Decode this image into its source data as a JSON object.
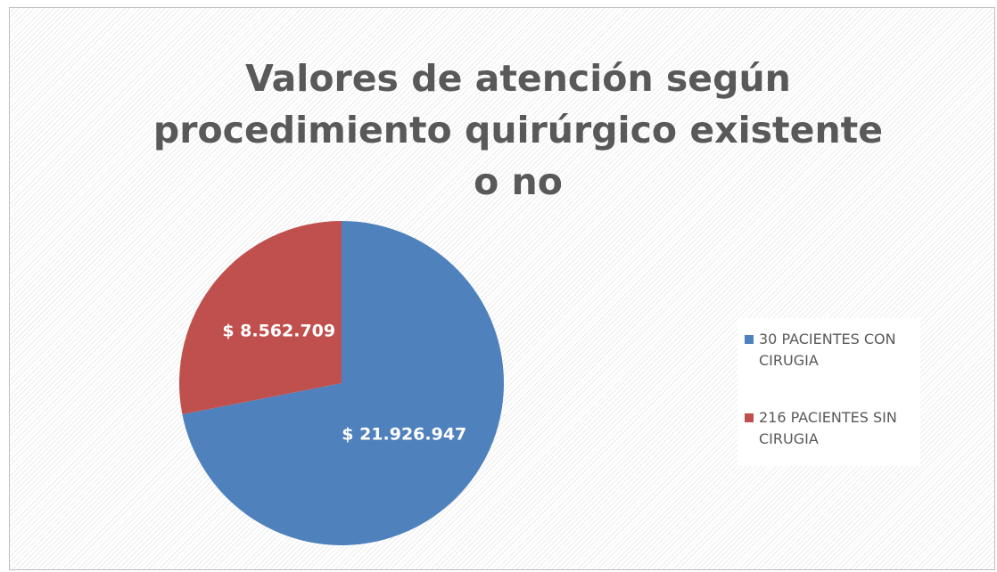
{
  "chart_data": {
    "type": "pie",
    "title": "Valores de atención según procedimiento quirúrgico existente o no",
    "series": [
      {
        "name": "30 PACIENTES CON CIRUGIA",
        "color": "#4f81bd"
      },
      {
        "name": "216 PACIENTES SIN CIRUGIA",
        "color": "#c0504d"
      }
    ],
    "values": [
      21926947,
      8562709
    ],
    "value_labels": [
      "$ 21.926.947",
      "$ 8.562.709"
    ],
    "legend": "right"
  }
}
